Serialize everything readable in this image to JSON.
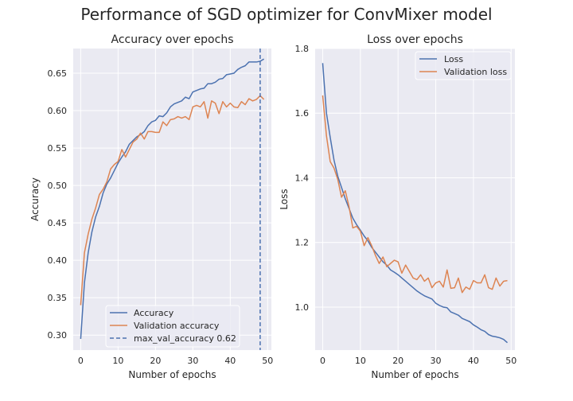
{
  "figure": {
    "suptitle": "Performance of SGD optimizer for ConvMixer model"
  },
  "colors": {
    "series1": "#4c72b0",
    "series2": "#dd8452",
    "axes_bg": "#eaeaf2",
    "grid": "#ffffff",
    "text": "#262626"
  },
  "chart_data": [
    {
      "type": "line",
      "title": "Accuracy over epochs",
      "xlabel": "Number of epochs",
      "ylabel": "Accuracy",
      "xlim": [
        -2,
        51
      ],
      "ylim": [
        0.28,
        0.683
      ],
      "xticks": [
        0,
        10,
        20,
        30,
        40,
        50
      ],
      "yticks": [
        0.3,
        0.35,
        0.4,
        0.45,
        0.5,
        0.55,
        0.6,
        0.65
      ],
      "grid": true,
      "legend_position": "lower-center",
      "x": [
        0,
        1,
        2,
        3,
        4,
        5,
        6,
        7,
        8,
        9,
        10,
        11,
        12,
        13,
        14,
        15,
        16,
        17,
        18,
        19,
        20,
        21,
        22,
        23,
        24,
        25,
        26,
        27,
        28,
        29,
        30,
        31,
        32,
        33,
        34,
        35,
        36,
        37,
        38,
        39,
        40,
        41,
        42,
        43,
        44,
        45,
        46,
        47,
        48,
        49
      ],
      "series": [
        {
          "name": "Accuracy",
          "values": [
            0.295,
            0.37,
            0.41,
            0.438,
            0.458,
            0.472,
            0.49,
            0.502,
            0.51,
            0.52,
            0.53,
            0.538,
            0.545,
            0.555,
            0.56,
            0.565,
            0.568,
            0.572,
            0.58,
            0.585,
            0.587,
            0.593,
            0.592,
            0.597,
            0.605,
            0.609,
            0.611,
            0.613,
            0.618,
            0.616,
            0.625,
            0.627,
            0.629,
            0.63,
            0.636,
            0.636,
            0.638,
            0.642,
            0.643,
            0.648,
            0.649,
            0.65,
            0.655,
            0.658,
            0.66,
            0.665,
            0.665,
            0.665,
            0.666,
            0.669
          ]
        },
        {
          "name": "Validation accuracy",
          "values": [
            0.34,
            0.41,
            0.435,
            0.455,
            0.47,
            0.488,
            0.495,
            0.505,
            0.522,
            0.528,
            0.532,
            0.548,
            0.538,
            0.548,
            0.558,
            0.562,
            0.57,
            0.562,
            0.572,
            0.572,
            0.571,
            0.571,
            0.585,
            0.58,
            0.588,
            0.589,
            0.592,
            0.59,
            0.592,
            0.588,
            0.605,
            0.607,
            0.605,
            0.612,
            0.59,
            0.613,
            0.61,
            0.596,
            0.612,
            0.605,
            0.61,
            0.605,
            0.604,
            0.612,
            0.608,
            0.616,
            0.613,
            0.615,
            0.62,
            0.615
          ]
        }
      ],
      "reference_line": {
        "name": "max_val_accuracy 0.62",
        "x": 48,
        "orientation": "vertical",
        "style": "dashed"
      }
    },
    {
      "type": "line",
      "title": "Loss over epochs",
      "xlabel": "Number of epochs",
      "ylabel": "Loss",
      "xlim": [
        -2,
        51
      ],
      "ylim": [
        0.867,
        1.8
      ],
      "xticks": [
        0,
        10,
        20,
        30,
        40,
        50
      ],
      "yticks": [
        1.0,
        1.2,
        1.4,
        1.6,
        1.8
      ],
      "grid": true,
      "legend_position": "upper-right",
      "x": [
        0,
        1,
        2,
        3,
        4,
        5,
        6,
        7,
        8,
        9,
        10,
        11,
        12,
        13,
        14,
        15,
        16,
        17,
        18,
        19,
        20,
        21,
        22,
        23,
        24,
        25,
        26,
        27,
        28,
        29,
        30,
        31,
        32,
        33,
        34,
        35,
        36,
        37,
        38,
        39,
        40,
        41,
        42,
        43,
        44,
        45,
        46,
        47,
        48,
        49
      ],
      "series": [
        {
          "name": "Loss",
          "values": [
            1.755,
            1.6,
            1.525,
            1.455,
            1.405,
            1.37,
            1.335,
            1.305,
            1.275,
            1.255,
            1.238,
            1.22,
            1.205,
            1.185,
            1.17,
            1.155,
            1.14,
            1.13,
            1.115,
            1.108,
            1.1,
            1.09,
            1.08,
            1.07,
            1.06,
            1.05,
            1.042,
            1.035,
            1.03,
            1.025,
            1.012,
            1.005,
            1.0,
            0.998,
            0.985,
            0.98,
            0.975,
            0.965,
            0.96,
            0.955,
            0.945,
            0.938,
            0.93,
            0.925,
            0.915,
            0.91,
            0.908,
            0.905,
            0.9,
            0.89
          ]
        },
        {
          "name": "Validation loss",
          "values": [
            1.655,
            1.53,
            1.45,
            1.43,
            1.395,
            1.34,
            1.36,
            1.31,
            1.245,
            1.25,
            1.235,
            1.19,
            1.215,
            1.19,
            1.16,
            1.135,
            1.155,
            1.125,
            1.135,
            1.145,
            1.14,
            1.105,
            1.13,
            1.11,
            1.09,
            1.085,
            1.1,
            1.08,
            1.09,
            1.06,
            1.075,
            1.08,
            1.062,
            1.115,
            1.058,
            1.06,
            1.09,
            1.045,
            1.062,
            1.055,
            1.082,
            1.075,
            1.075,
            1.1,
            1.06,
            1.055,
            1.09,
            1.065,
            1.08,
            1.082
          ]
        }
      ]
    }
  ]
}
